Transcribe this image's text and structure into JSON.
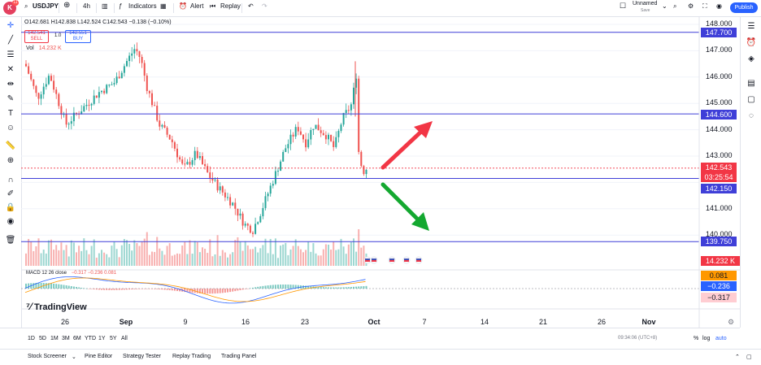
{
  "topbar": {
    "logo_letter": "K",
    "badge": "11",
    "symbol": "USDJPY",
    "interval": "4h",
    "indicators": "Indicators",
    "alert": "Alert",
    "replay": "Replay",
    "layout_name": "Unnamed",
    "save": "Save",
    "publish": "Publish"
  },
  "legend": {
    "ohlc": "O142.681 H142.838 L142.524 C142.543 −0.138 (−0.10%)",
    "sell_price": "142.541",
    "sell_label": "SELL",
    "spread": "1.0",
    "buy_price": "142.551",
    "buy_label": "BUY",
    "vol_label": "Vol",
    "vol_value": "14.232 K",
    "macd_label": "MACD 12 26 close",
    "macd_values": "−0.317  −0.236  0.081"
  },
  "price_axis": [
    "148.000",
    "147.000",
    "146.000",
    "145.000",
    "144.000",
    "143.000",
    "141.000",
    "140.000"
  ],
  "price_tags": {
    "line1": "147.700",
    "line2": "144.600",
    "current": "142.543",
    "countdown": "03:25:54",
    "line3": "142.150",
    "line4": "139.750",
    "volume": "14.232 K",
    "macd_hist": "0.081",
    "macd_line": "−0.236",
    "signal_line": "−0.317"
  },
  "time_axis": [
    "26",
    "Sep",
    "9",
    "16",
    "23",
    "Oct",
    "7",
    "14",
    "21",
    "26",
    "Nov"
  ],
  "ranges": [
    "1D",
    "5D",
    "1M",
    "3M",
    "6M",
    "YTD",
    "1Y",
    "5Y",
    "All"
  ],
  "clock": "09:34:06 (UTC+8)",
  "bottom_toggles": [
    "%",
    "log",
    "auto"
  ],
  "panels": [
    "Stock Screener",
    "Pine Editor",
    "Strategy Tester",
    "Replay Trading",
    "Trading Panel"
  ],
  "brand": "TradingView",
  "colors": {
    "up": "#26a69a",
    "down": "#ef5350",
    "hline": "#3f3fd8",
    "price": "#f23645",
    "accent": "#2962ff",
    "macd": "#2962ff",
    "signal": "#ff9800"
  }
}
